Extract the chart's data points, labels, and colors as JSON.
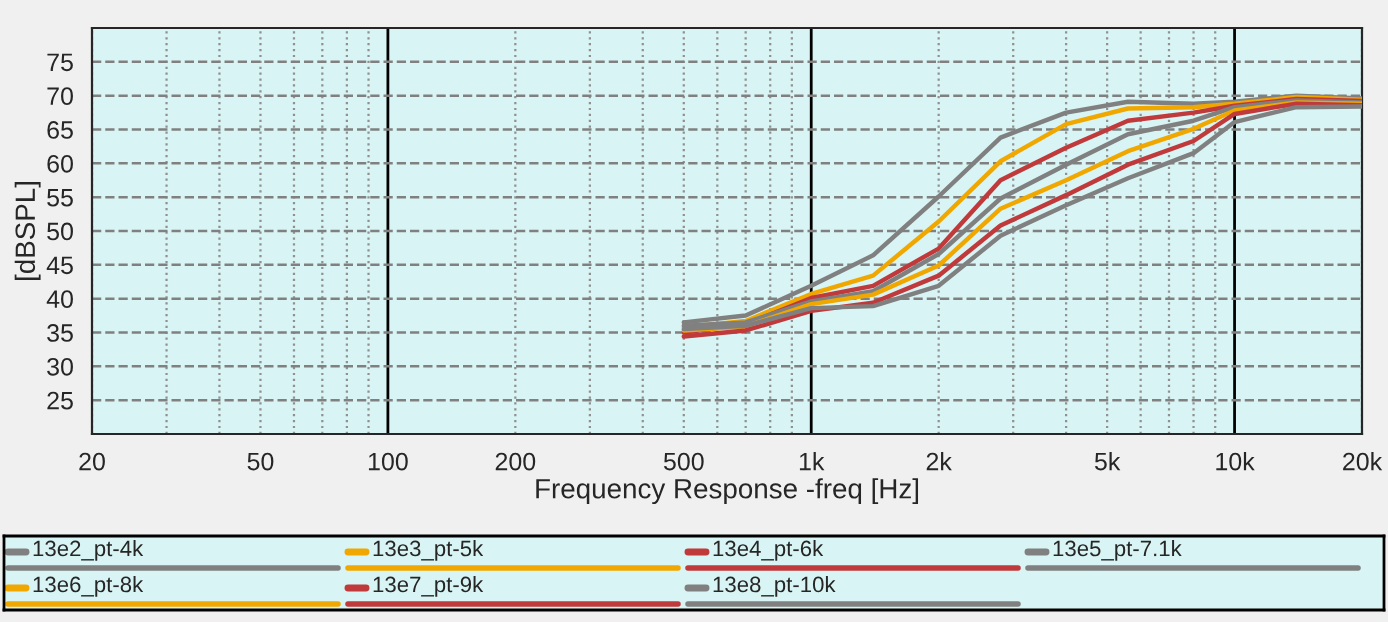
{
  "chart_data": {
    "type": "line",
    "xlabel": "Frequency Response -freq [Hz]",
    "ylabel": "[dBSPL]",
    "log": "x",
    "x": [
      500,
      700,
      1000,
      1400,
      2000,
      2800,
      4000,
      5600,
      8000,
      10000,
      14000,
      20000
    ],
    "series": [
      {
        "name": "13e2_pt-4k",
        "color": "#808080",
        "values": [
          36.5,
          37.5,
          41.9,
          46.4,
          55.1,
          63.8,
          67.5,
          69.1,
          68.8,
          69.1,
          70.0,
          69.6
        ]
      },
      {
        "name": "13e3_pt-5k",
        "color": "#f0a800",
        "values": [
          35.8,
          36.7,
          40.7,
          43.4,
          51.4,
          60.3,
          65.8,
          68.1,
          68.3,
          68.8,
          69.8,
          69.4
        ]
      },
      {
        "name": "13e4_pt-6k",
        "color": "#c0393b",
        "values": [
          35.0,
          36.2,
          40.1,
          41.9,
          47.4,
          57.5,
          62.3,
          66.3,
          67.5,
          68.5,
          69.5,
          69.2
        ]
      },
      {
        "name": "13e5_pt-7.1k",
        "color": "#808080",
        "values": [
          36.0,
          36.5,
          39.6,
          41.1,
          46.6,
          54.8,
          59.8,
          64.3,
          66.3,
          68.3,
          69.3,
          69.0
        ]
      },
      {
        "name": "13e6_pt-8k",
        "color": "#f0a800",
        "values": [
          35.3,
          35.9,
          39.2,
          40.6,
          44.9,
          53.3,
          57.5,
          61.8,
          65.1,
          67.8,
          69.0,
          68.8
        ]
      },
      {
        "name": "13e7_pt-9k",
        "color": "#c0393b",
        "values": [
          34.4,
          35.3,
          38.2,
          39.4,
          43.4,
          50.8,
          55.3,
          59.8,
          63.3,
          67.3,
          68.8,
          68.6
        ]
      },
      {
        "name": "13e8_pt-10k",
        "color": "#808080",
        "values": [
          35.5,
          36.0,
          38.6,
          38.9,
          41.9,
          49.3,
          53.8,
          57.8,
          61.5,
          66.1,
          68.3,
          68.4
        ]
      }
    ],
    "xlim": [
      20,
      20000
    ],
    "ylim": [
      20,
      80
    ],
    "xticks": [
      20,
      {
        "value": 30,
        "label": null
      },
      {
        "value": 40,
        "label": null
      },
      50,
      {
        "value": 60,
        "label": null
      },
      {
        "value": 70,
        "label": null
      },
      {
        "value": 80,
        "label": null
      },
      {
        "value": 90,
        "label": null
      },
      100,
      200,
      {
        "value": 300,
        "label": null
      },
      {
        "value": 400,
        "label": null
      },
      500,
      {
        "value": 600,
        "label": null
      },
      {
        "value": 700,
        "label": null
      },
      {
        "value": 800,
        "label": null
      },
      {
        "value": 900,
        "label": null
      },
      {
        "value": 1000,
        "label": "1k"
      },
      {
        "value": 2000,
        "label": "2k"
      },
      {
        "value": 3000,
        "label": null
      },
      {
        "value": 4000,
        "label": null
      },
      {
        "value": 5000,
        "label": "5k"
      },
      {
        "value": 6000,
        "label": null
      },
      {
        "value": 7000,
        "label": null
      },
      {
        "value": 8000,
        "label": null
      },
      {
        "value": 9000,
        "label": null
      },
      {
        "value": 10000,
        "label": "10k"
      },
      {
        "value": 20000,
        "label": "20k"
      }
    ],
    "yticks": [
      25,
      30,
      35,
      40,
      45,
      50,
      55,
      60,
      65,
      70,
      75
    ],
    "grid": true,
    "legend": "bottom",
    "marker": "none",
    "line_style": "solid"
  }
}
